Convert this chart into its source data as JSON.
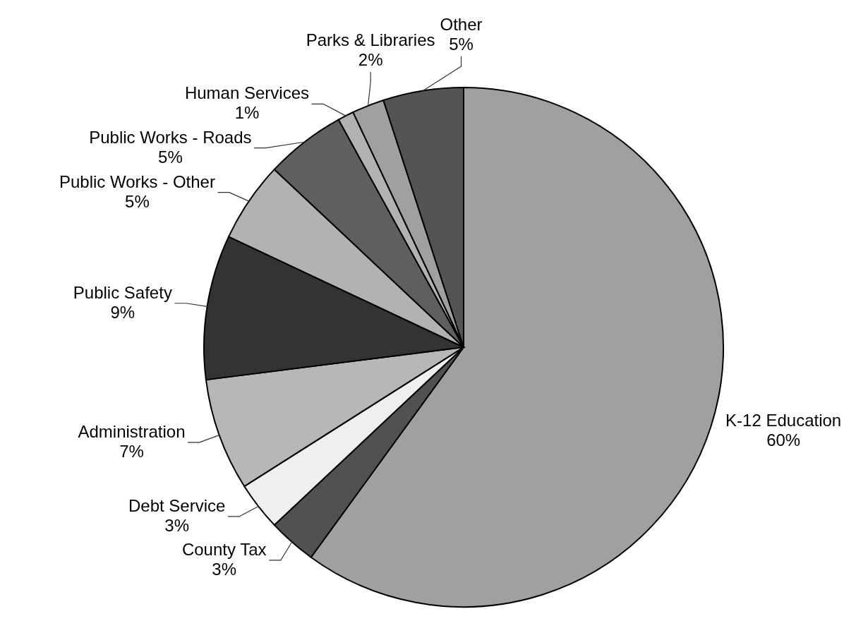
{
  "chart_data": {
    "type": "pie",
    "categories": [
      "K-12 Education",
      "County Tax",
      "Debt Service",
      "Administration",
      "Public Safety",
      "Public Works - Other",
      "Public Works - Roads",
      "Human Services",
      "Parks & Libraries",
      "Other"
    ],
    "values": [
      60,
      3,
      3,
      7,
      9,
      5,
      5,
      1,
      2,
      5
    ],
    "colors": [
      "#a0a0a0",
      "#515151",
      "#efefef",
      "#b7b7b7",
      "#333333",
      "#b2b2b2",
      "#5f5f5f",
      "#b2b2b2",
      "#a0a0a0",
      "#545454"
    ],
    "value_labels": [
      "60%",
      "3%",
      "3%",
      "7%",
      "9%",
      "5%",
      "5%",
      "1%",
      "2%",
      "5%"
    ]
  }
}
